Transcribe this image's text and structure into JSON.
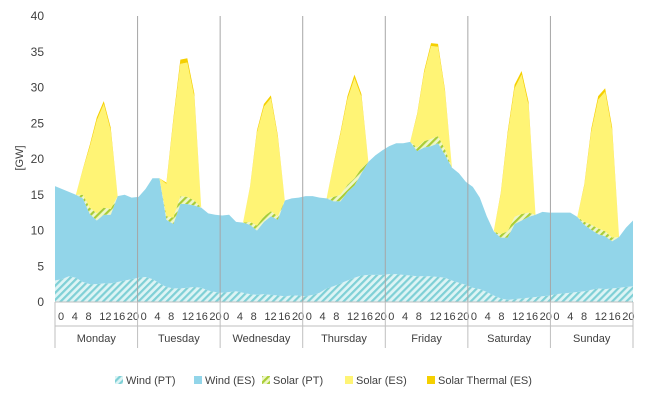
{
  "chart_data": {
    "type": "area",
    "stacked": true,
    "title": "",
    "ylabel": "[GW]",
    "xlabel": "",
    "ylim": [
      0,
      40
    ],
    "yticks": [
      0,
      5,
      10,
      15,
      20,
      25,
      30,
      35,
      40
    ],
    "grid": "vertical day separators",
    "legend_position": "bottom",
    "days": [
      "Monday",
      "Tuesday",
      "Wednesday",
      "Thursday",
      "Friday",
      "Saturday",
      "Sunday"
    ],
    "hour_ticks": [
      "0",
      "4",
      "8",
      "12",
      "16",
      "20"
    ],
    "hours_per_point": 2,
    "series": [
      {
        "name": "Wind (PT)",
        "color": "#a9e2e4",
        "pattern": "hatched",
        "values": [
          3.0,
          3.2,
          3.6,
          3.4,
          2.8,
          2.5,
          2.5,
          2.6,
          2.6,
          2.8,
          3.0,
          3.2,
          3.4,
          3.5,
          3.2,
          2.6,
          2.1,
          1.9,
          1.9,
          2.0,
          2.1,
          2.0,
          1.6,
          1.4,
          1.3,
          1.4,
          1.5,
          1.3,
          1.1,
          1.0,
          1.1,
          1.0,
          0.9,
          0.8,
          0.9,
          0.9,
          0.8,
          1.0,
          1.3,
          1.9,
          2.2,
          2.6,
          3.0,
          3.4,
          3.7,
          3.8,
          3.8,
          3.8,
          3.9,
          3.9,
          3.8,
          3.7,
          3.6,
          3.6,
          3.6,
          3.5,
          3.4,
          3.0,
          2.7,
          2.4,
          2.0,
          1.8,
          1.4,
          0.9,
          0.5,
          0.3,
          0.4,
          0.5,
          0.6,
          0.7,
          0.8,
          0.9,
          1.1,
          1.2,
          1.3,
          1.4,
          1.5,
          1.7,
          1.9,
          1.8,
          1.9,
          2.0,
          2.1,
          2.2
        ]
      },
      {
        "name": "Wind (ES)",
        "color": "#92d5e9",
        "pattern": "solid",
        "values": [
          13.2,
          12.6,
          11.8,
          11.6,
          11.7,
          9.8,
          8.9,
          9.6,
          9.6,
          12.0,
          12.0,
          11.4,
          11.3,
          12.3,
          14.1,
          14.7,
          9.4,
          9.0,
          11.8,
          11.7,
          11.4,
          11.2,
          10.8,
          10.8,
          10.8,
          10.8,
          9.7,
          9.8,
          9.7,
          9.0,
          10.1,
          11.0,
          10.6,
          13.4,
          13.6,
          13.7,
          14.0,
          13.8,
          13.3,
          12.6,
          11.9,
          11.5,
          12.4,
          12.9,
          14.3,
          15.8,
          16.7,
          17.4,
          17.9,
          18.3,
          18.4,
          18.7,
          17.5,
          18.0,
          18.2,
          18.7,
          17.2,
          15.8,
          15.3,
          14.4,
          14.1,
          12.8,
          10.6,
          9.0,
          8.5,
          8.7,
          10.5,
          10.9,
          11.3,
          11.5,
          11.8,
          11.6,
          11.4,
          11.3,
          11.2,
          10.5,
          9.3,
          8.4,
          7.6,
          7.4,
          6.6,
          7.1,
          8.3,
          9.2
        ]
      },
      {
        "name": "Solar (PT)",
        "color": "#d3e88e",
        "pattern": "hatched",
        "values": [
          0,
          0,
          0,
          0,
          0.5,
          0.9,
          1.0,
          1.0,
          0.8,
          0,
          0,
          0,
          0,
          0,
          0,
          0,
          0.5,
          0.9,
          1.1,
          1.0,
          0.7,
          0,
          0,
          0,
          0,
          0,
          0,
          0,
          0.4,
          0.7,
          0.8,
          0.7,
          0.5,
          0,
          0,
          0,
          0,
          0,
          0,
          0,
          0.6,
          0.9,
          1.0,
          1.0,
          0.7,
          0,
          0,
          0,
          0,
          0,
          0,
          0,
          0.5,
          0.9,
          1.0,
          1.0,
          0.8,
          0,
          0,
          0,
          0,
          0,
          0,
          0,
          0.5,
          0.9,
          1.0,
          0.9,
          0.6,
          0,
          0,
          0,
          0,
          0,
          0,
          0,
          0.4,
          0.7,
          0.8,
          0.7,
          0.5,
          0,
          0,
          0
        ]
      },
      {
        "name": "Solar (ES)",
        "color": "#fff475",
        "pattern": "solid",
        "values": [
          0,
          0,
          0,
          0,
          3.5,
          8.5,
          13.0,
          14.5,
          11.0,
          0,
          0,
          0,
          0,
          0,
          0,
          0,
          4.5,
          13.5,
          18.5,
          18.8,
          14.5,
          0,
          0,
          0,
          0,
          0,
          0,
          0,
          4.8,
          13.0,
          15.3,
          15.8,
          11.0,
          0,
          0,
          0,
          0,
          0,
          0,
          0,
          4.5,
          8.5,
          12.0,
          14.0,
          10.0,
          0,
          0,
          0,
          0,
          0,
          0,
          0,
          4.5,
          9.5,
          13.0,
          12.5,
          8.0,
          0,
          0,
          0,
          0,
          0,
          0,
          0,
          5.5,
          13.5,
          18.0,
          19.5,
          15.0,
          0,
          0,
          0,
          0,
          0,
          0,
          0,
          5.0,
          13.0,
          18.0,
          19.5,
          15.0,
          0,
          0,
          0
        ]
      },
      {
        "name": "Solar Thermal (ES)",
        "color": "#f5d000",
        "pattern": "solid",
        "values": [
          0,
          0,
          0,
          0,
          0.1,
          0.3,
          0.4,
          0.4,
          0.4,
          0,
          0,
          0,
          0,
          0,
          0,
          0,
          0.2,
          0.4,
          0.6,
          0.6,
          0.5,
          0,
          0,
          0,
          0,
          0,
          0,
          0,
          0.1,
          0.3,
          0.4,
          0.4,
          0.3,
          0,
          0,
          0,
          0,
          0,
          0,
          0,
          0.1,
          0.3,
          0.4,
          0.5,
          0.4,
          0,
          0,
          0,
          0,
          0,
          0,
          0,
          0.2,
          0.3,
          0.4,
          0.4,
          0.3,
          0,
          0,
          0,
          0,
          0,
          0,
          0,
          0.2,
          0.4,
          0.5,
          0.5,
          0.5,
          0,
          0,
          0,
          0,
          0,
          0,
          0,
          0.2,
          0.4,
          0.5,
          0.5,
          0.5,
          0,
          0,
          0
        ]
      }
    ]
  }
}
